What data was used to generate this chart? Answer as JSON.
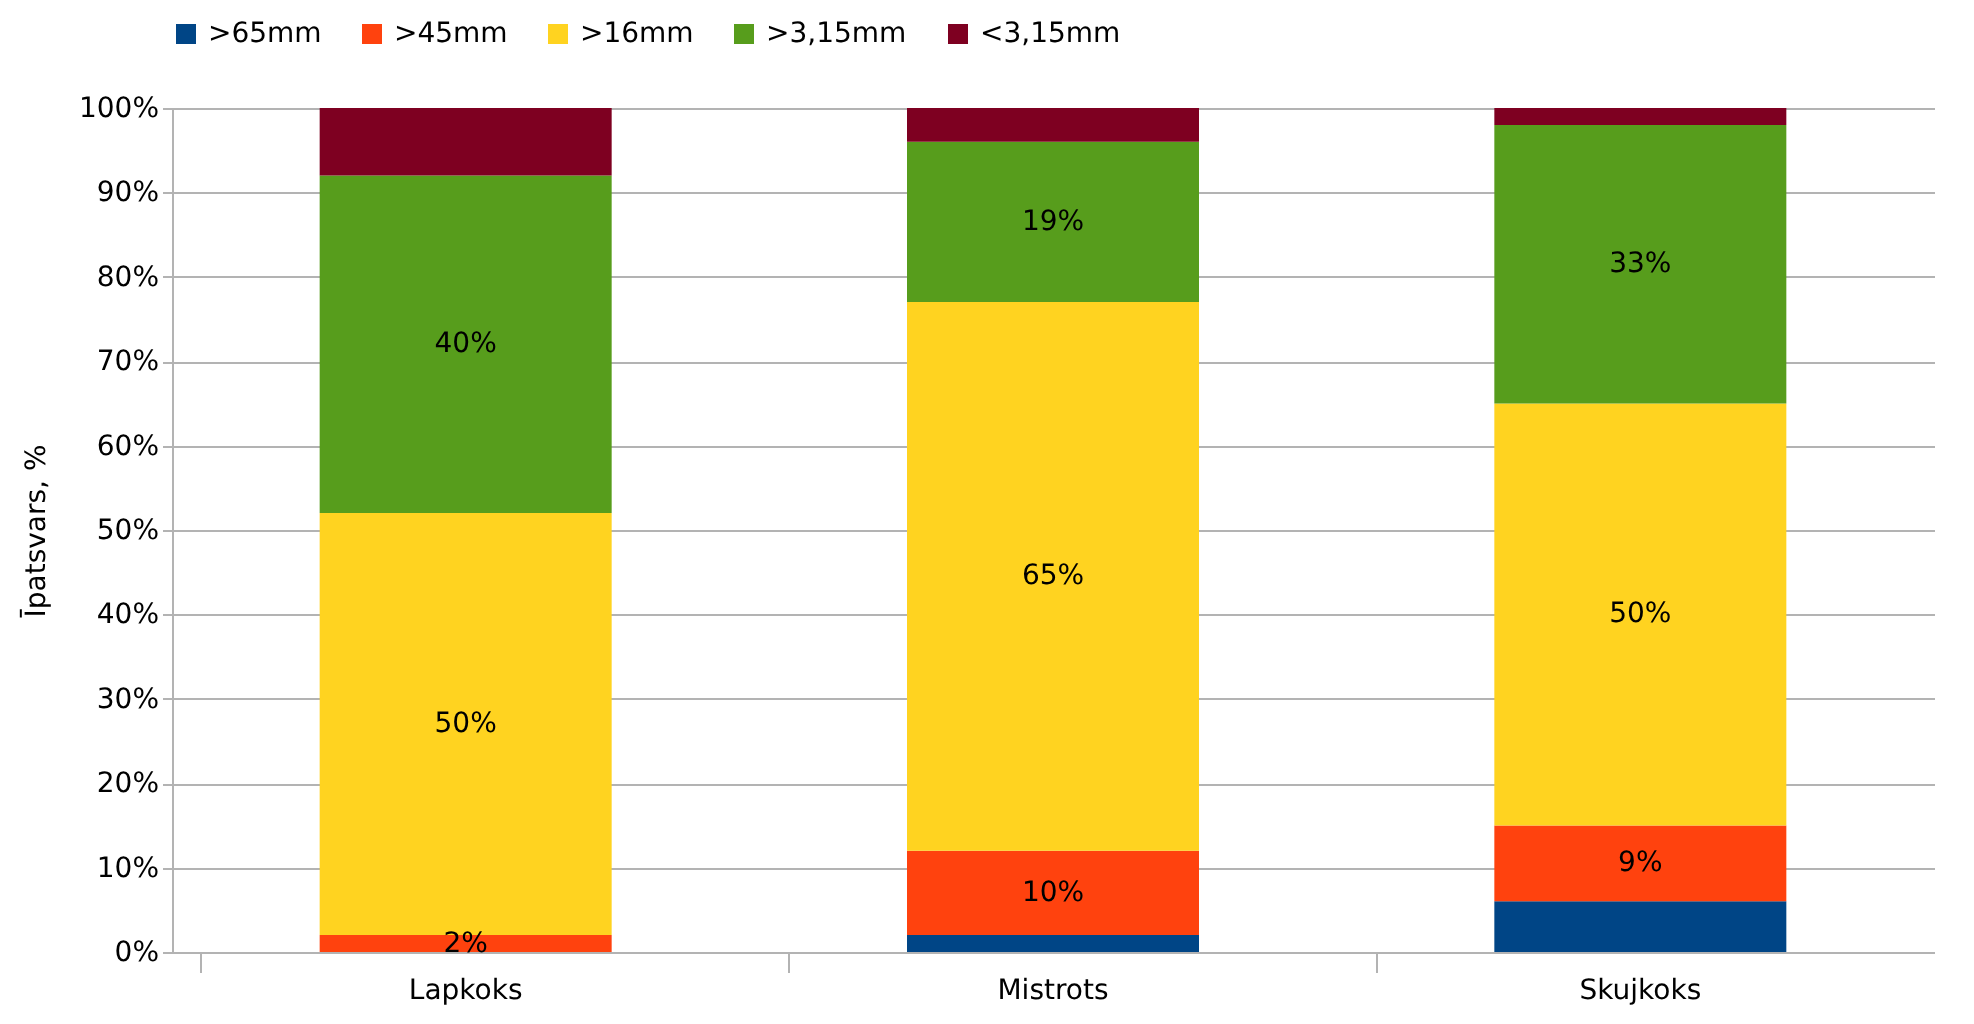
{
  "chart_data": {
    "type": "bar",
    "stacked": true,
    "ylabel": "Īpatsvars, %",
    "categories": [
      "Lapkoks",
      "Mistrots",
      "Skujkoks"
    ],
    "series": [
      {
        "name": ">65mm",
        "color": "#004586",
        "values": [
          0,
          2,
          6
        ]
      },
      {
        "name": ">45mm",
        "color": "#ff420e",
        "values": [
          2,
          10,
          9
        ],
        "value_labels": [
          "2%",
          "10%",
          "9%"
        ]
      },
      {
        "name": ">16mm",
        "color": "#ffd320",
        "values": [
          50,
          65,
          50
        ],
        "value_labels": [
          "50%",
          "65%",
          "50%"
        ]
      },
      {
        "name": ">3,15mm",
        "color": "#579d1c",
        "values": [
          40,
          19,
          33
        ],
        "value_labels": [
          "40%",
          "19%",
          "33%"
        ]
      },
      {
        "name": "<3,15mm",
        "color": "#7e0021",
        "values": [
          8,
          4,
          2
        ]
      }
    ],
    "ylim": [
      0,
      100
    ],
    "yticks": [
      {
        "value": 0,
        "label": "0%"
      },
      {
        "value": 10,
        "label": "10%"
      },
      {
        "value": 20,
        "label": "20%"
      },
      {
        "value": 30,
        "label": "30%"
      },
      {
        "value": 40,
        "label": "40%"
      },
      {
        "value": 50,
        "label": "50%"
      },
      {
        "value": 60,
        "label": "60%"
      },
      {
        "value": 70,
        "label": "70%"
      },
      {
        "value": 80,
        "label": "80%"
      },
      {
        "value": 90,
        "label": "90%"
      },
      {
        "value": 100,
        "label": "100%"
      }
    ],
    "grid": "y",
    "legend": "top"
  }
}
